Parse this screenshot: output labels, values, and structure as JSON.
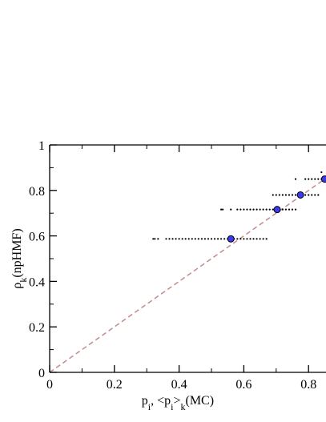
{
  "chart_data": {
    "type": "scatter",
    "x_label": [
      {
        "text": "p"
      },
      {
        "text": "i",
        "sub": true
      },
      {
        "text": ", <p"
      },
      {
        "text": "i",
        "sub": true
      },
      {
        "text": ">"
      },
      {
        "text": "k",
        "sub": true
      },
      {
        "text": "(MC)"
      }
    ],
    "y_label": [
      {
        "text": "ρ"
      },
      {
        "text": "k",
        "sub": true
      },
      {
        "text": "(npHMF)"
      }
    ],
    "xlim": [
      0,
      0.851
    ],
    "ylim": [
      0,
      1
    ],
    "xticks": [
      0,
      0.2,
      0.4,
      0.6,
      0.8
    ],
    "yticks": [
      0,
      0.2,
      0.4,
      0.6,
      0.8,
      1
    ],
    "xminorticks": [
      0.1,
      0.3,
      0.5,
      0.7
    ],
    "yminorticks": [
      0.1,
      0.3,
      0.5,
      0.7,
      0.9
    ],
    "diagonal_color": "#c48c8c",
    "strips": [
      {
        "y": 0.587,
        "color": "#000000",
        "x": [
          0.32,
          0.325,
          0.335,
          0.36,
          0.37,
          0.38,
          0.39,
          0.4,
          0.41,
          0.42,
          0.43,
          0.44,
          0.45,
          0.46,
          0.47,
          0.48,
          0.49,
          0.5,
          0.51,
          0.52,
          0.53,
          0.54,
          0.55,
          0.56,
          0.57,
          0.58,
          0.59,
          0.6,
          0.61,
          0.62,
          0.63,
          0.64,
          0.65,
          0.66,
          0.67
        ]
      },
      {
        "y": 0.716,
        "color": "#000000",
        "x": [
          0.53,
          0.535,
          0.56,
          0.58,
          0.59,
          0.6,
          0.61,
          0.62,
          0.63,
          0.64,
          0.65,
          0.66,
          0.67,
          0.68,
          0.69,
          0.7,
          0.71,
          0.72,
          0.73,
          0.74,
          0.75,
          0.76
        ]
      },
      {
        "y": 0.78,
        "color": "#000000",
        "x": [
          0.69,
          0.7,
          0.71,
          0.72,
          0.73,
          0.74,
          0.75,
          0.76,
          0.77,
          0.78,
          0.79,
          0.8,
          0.81,
          0.82,
          0.83
        ]
      },
      {
        "y": 0.85,
        "color": "#000000",
        "x": [
          0.76,
          0.79,
          0.8,
          0.81,
          0.82,
          0.83,
          0.84,
          0.85
        ]
      },
      {
        "y": 0.88,
        "color": "#000000",
        "x": [
          0.84
        ]
      }
    ],
    "averages": {
      "color": "#3a3aee",
      "x": [
        0.56,
        0.703,
        0.775,
        0.85
      ],
      "y": [
        0.587,
        0.716,
        0.78,
        0.85
      ]
    }
  }
}
